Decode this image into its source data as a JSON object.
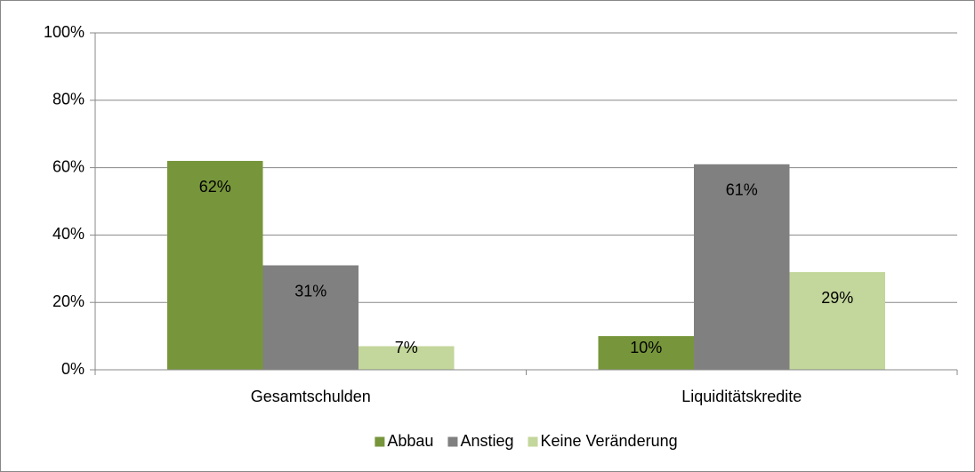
{
  "chart_data": {
    "type": "bar",
    "categories": [
      "Gesamtschulden",
      "Liquiditätskredite"
    ],
    "series": [
      {
        "name": "Abbau",
        "color": "#77963b",
        "values": [
          62,
          10
        ],
        "value_labels": [
          "62%",
          "10%"
        ]
      },
      {
        "name": "Anstieg",
        "color": "#808080",
        "values": [
          31,
          61
        ],
        "value_labels": [
          "31%",
          "61%"
        ]
      },
      {
        "name": "Keine Veränderung",
        "color": "#c3d69b",
        "values": [
          7,
          29
        ],
        "value_labels": [
          "7%",
          "29%"
        ]
      }
    ],
    "ylim": [
      0,
      100
    ],
    "yticks": [
      {
        "value": 0,
        "label": "0%"
      },
      {
        "value": 20,
        "label": "20%"
      },
      {
        "value": 40,
        "label": "40%"
      },
      {
        "value": 60,
        "label": "60%"
      },
      {
        "value": 80,
        "label": "80%"
      },
      {
        "value": 100,
        "label": "100%"
      }
    ],
    "grid": true,
    "legend": "bottom"
  }
}
